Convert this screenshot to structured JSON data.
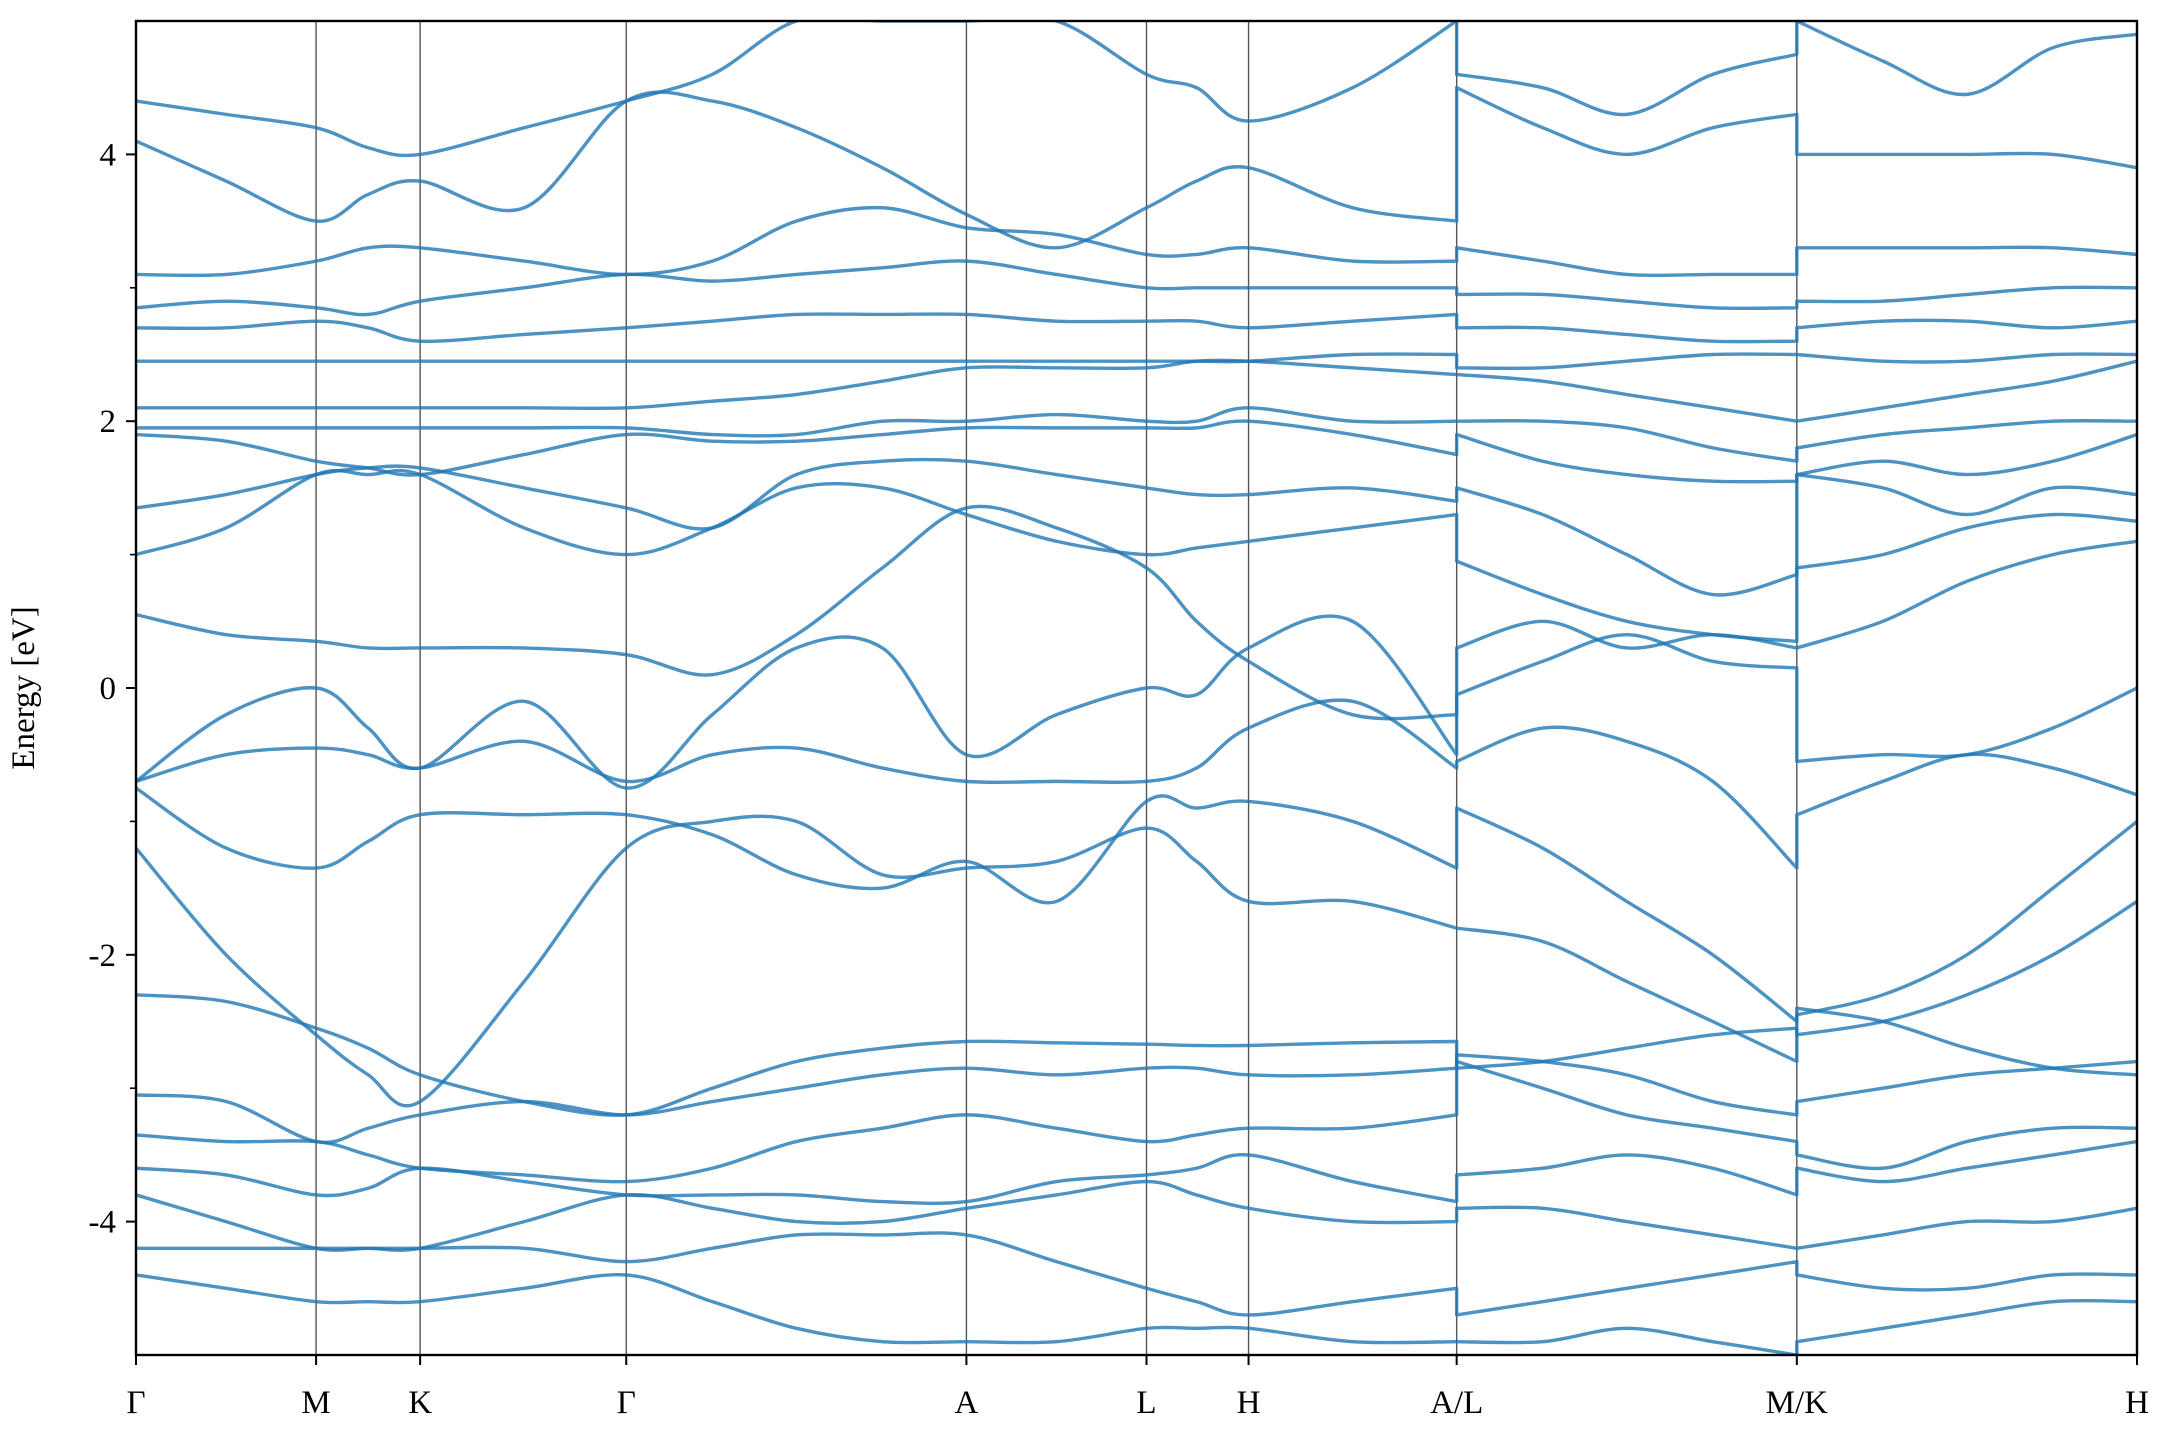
{
  "chart_data": {
    "type": "line",
    "ylabel": "Energy [eV]",
    "color": "#1f77b4",
    "xlim": [
      0,
      10
    ],
    "ylim": [
      -5,
      5
    ],
    "xticks": [
      {
        "value": 0,
        "label": "Γ"
      },
      {
        "value": 0.9,
        "label": "M"
      },
      {
        "value": 1.42,
        "label": "K"
      },
      {
        "value": 2.45,
        "label": "Γ"
      },
      {
        "value": 4.15,
        "label": "A"
      },
      {
        "value": 5.05,
        "label": "L"
      },
      {
        "value": 5.56,
        "label": "H"
      },
      {
        "value": 6.6,
        "label": "A/L"
      },
      {
        "value": 8.3,
        "label": "M/K"
      },
      {
        "value": 10,
        "label": "H"
      }
    ],
    "yticks": [
      -4,
      -2,
      0,
      2,
      4
    ],
    "yminorticks": [
      -3,
      -1,
      1,
      3
    ],
    "x": [
      0,
      0.45,
      0.9,
      1.16,
      1.42,
      1.94,
      2.45,
      2.88,
      3.3,
      3.73,
      4.15,
      4.6,
      5.05,
      5.3,
      5.56,
      6.08,
      6.6,
      6.6,
      7.03,
      7.45,
      7.88,
      8.3,
      8.3,
      8.73,
      9.15,
      9.58,
      10
    ],
    "series": [
      {
        "values": [
          -4.4,
          -4.5,
          -4.6,
          -4.6,
          -4.6,
          -4.5,
          -4.4,
          -4.6,
          -4.8,
          -4.9,
          -4.9,
          -4.9,
          -4.8,
          -4.8,
          -4.8,
          -4.9,
          -4.9,
          -4.9,
          -4.9,
          -4.8,
          -4.9,
          -5.0,
          -4.9,
          -4.8,
          -4.7,
          -4.6,
          -4.6
        ]
      },
      {
        "values": [
          -4.2,
          -4.2,
          -4.2,
          -4.2,
          -4.2,
          -4.2,
          -4.3,
          -4.2,
          -4.1,
          -4.1,
          -4.1,
          -4.3,
          -4.5,
          -4.6,
          -4.7,
          -4.6,
          -4.5,
          -4.7,
          -4.6,
          -4.5,
          -4.4,
          -4.3,
          -4.4,
          -4.5,
          -4.5,
          -4.4,
          -4.4
        ]
      },
      {
        "values": [
          -3.8,
          -4.0,
          -4.2,
          -4.2,
          -4.2,
          -4.0,
          -3.8,
          -3.9,
          -4.0,
          -4.0,
          -3.9,
          -3.8,
          -3.7,
          -3.8,
          -3.9,
          -4.0,
          -4.0,
          -3.9,
          -3.9,
          -4.0,
          -4.1,
          -4.2,
          -4.2,
          -4.1,
          -4.0,
          -4.0,
          -3.9
        ]
      },
      {
        "values": [
          -3.6,
          -3.65,
          -3.8,
          -3.75,
          -3.6,
          -3.7,
          -3.8,
          -3.8,
          -3.8,
          -3.85,
          -3.85,
          -3.7,
          -3.65,
          -3.6,
          -3.5,
          -3.7,
          -3.85,
          -3.65,
          -3.6,
          -3.5,
          -3.6,
          -3.8,
          -3.6,
          -3.7,
          -3.6,
          -3.5,
          -3.4
        ]
      },
      {
        "values": [
          -3.35,
          -3.4,
          -3.4,
          -3.5,
          -3.6,
          -3.65,
          -3.7,
          -3.6,
          -3.4,
          -3.3,
          -3.2,
          -3.3,
          -3.4,
          -3.35,
          -3.3,
          -3.3,
          -3.2,
          -2.8,
          -3.0,
          -3.2,
          -3.3,
          -3.4,
          -3.5,
          -3.6,
          -3.4,
          -3.3,
          -3.3
        ]
      },
      {
        "values": [
          -3.05,
          -3.1,
          -3.4,
          -3.3,
          -3.2,
          -3.1,
          -3.2,
          -3.1,
          -3.0,
          -2.9,
          -2.85,
          -2.9,
          -2.85,
          -2.85,
          -2.9,
          -2.9,
          -2.85,
          -2.75,
          -2.8,
          -2.9,
          -3.1,
          -3.2,
          -3.1,
          -3.0,
          -2.9,
          -2.85,
          -2.8
        ]
      },
      {
        "values": [
          -2.3,
          -2.35,
          -2.55,
          -2.7,
          -2.9,
          -3.1,
          -3.2,
          -3.0,
          -2.8,
          -2.7,
          -2.65,
          -2.66,
          -2.67,
          -2.68,
          -2.68,
          -2.66,
          -2.65,
          -2.85,
          -2.8,
          -2.7,
          -2.6,
          -2.55,
          -2.6,
          -2.5,
          -2.3,
          -2.0,
          -1.6
        ]
      },
      {
        "values": [
          -1.2,
          -2.0,
          -2.6,
          -2.9,
          -3.1,
          -2.2,
          -1.2,
          -1.0,
          -1.0,
          -1.4,
          -1.35,
          -1.3,
          -1.05,
          -1.3,
          -1.6,
          -1.6,
          -1.8,
          -1.8,
          -1.9,
          -2.2,
          -2.5,
          -2.8,
          -2.45,
          -2.3,
          -2.0,
          -1.5,
          -1.0
        ]
      },
      {
        "values": [
          -0.75,
          -1.2,
          -1.35,
          -1.15,
          -0.95,
          -0.95,
          -0.95,
          -1.1,
          -1.4,
          -1.5,
          -1.3,
          -1.6,
          -0.85,
          -0.9,
          -0.85,
          -1.0,
          -1.35,
          -0.9,
          -1.2,
          -1.6,
          -2.0,
          -2.5,
          -2.4,
          -2.5,
          -2.7,
          -2.85,
          -2.9
        ]
      },
      {
        "values": [
          -0.7,
          -0.5,
          -0.45,
          -0.5,
          -0.6,
          -0.4,
          -0.7,
          -0.5,
          -0.45,
          -0.6,
          -0.7,
          -0.7,
          -0.7,
          -0.6,
          -0.3,
          -0.1,
          -0.6,
          -0.55,
          -0.3,
          -0.4,
          -0.7,
          -1.35,
          -0.95,
          -0.7,
          -0.5,
          -0.6,
          -0.8
        ]
      },
      {
        "values": [
          -0.7,
          -0.2,
          0.0,
          -0.3,
          -0.6,
          -0.1,
          -0.75,
          -0.2,
          0.3,
          0.3,
          -0.5,
          -0.2,
          0.0,
          -0.05,
          0.3,
          0.5,
          -0.5,
          -0.05,
          0.2,
          0.4,
          0.2,
          0.15,
          -0.55,
          -0.5,
          -0.5,
          -0.3,
          0.0
        ]
      },
      {
        "values": [
          0.55,
          0.4,
          0.35,
          0.3,
          0.3,
          0.3,
          0.25,
          0.1,
          0.4,
          0.9,
          1.35,
          1.2,
          0.9,
          0.5,
          0.2,
          -0.2,
          -0.2,
          0.3,
          0.5,
          0.3,
          0.4,
          0.3,
          0.3,
          0.5,
          0.8,
          1.0,
          1.1
        ]
      },
      {
        "values": [
          1.0,
          1.2,
          1.6,
          1.6,
          1.6,
          1.2,
          1.0,
          1.2,
          1.5,
          1.5,
          1.3,
          1.1,
          1.0,
          1.05,
          1.1,
          1.2,
          1.3,
          0.95,
          0.7,
          0.5,
          0.4,
          0.35,
          0.9,
          1.0,
          1.2,
          1.3,
          1.25
        ]
      },
      {
        "values": [
          1.35,
          1.45,
          1.6,
          1.65,
          1.65,
          1.5,
          1.35,
          1.2,
          1.6,
          1.7,
          1.7,
          1.6,
          1.5,
          1.45,
          1.45,
          1.5,
          1.4,
          1.5,
          1.3,
          1.0,
          0.7,
          0.85,
          1.6,
          1.5,
          1.3,
          1.5,
          1.45
        ]
      },
      {
        "values": [
          1.9,
          1.85,
          1.7,
          1.65,
          1.6,
          1.75,
          1.9,
          1.85,
          1.85,
          1.9,
          1.95,
          1.95,
          1.95,
          1.95,
          2.0,
          1.9,
          1.75,
          1.9,
          1.7,
          1.6,
          1.55,
          1.55,
          1.6,
          1.7,
          1.6,
          1.7,
          1.9
        ]
      },
      {
        "values": [
          1.95,
          1.95,
          1.95,
          1.95,
          1.95,
          1.95,
          1.95,
          1.9,
          1.9,
          2.0,
          2.0,
          2.05,
          2.0,
          2.0,
          2.1,
          2.0,
          2.0,
          2.0,
          2.0,
          1.95,
          1.8,
          1.7,
          1.8,
          1.9,
          1.95,
          2.0,
          2.0
        ]
      },
      {
        "values": [
          2.1,
          2.1,
          2.1,
          2.1,
          2.1,
          2.1,
          2.1,
          2.15,
          2.2,
          2.3,
          2.4,
          2.4,
          2.4,
          2.45,
          2.45,
          2.4,
          2.35,
          2.35,
          2.3,
          2.2,
          2.1,
          2.0,
          2.0,
          2.1,
          2.2,
          2.3,
          2.45
        ]
      },
      {
        "values": [
          2.45,
          2.45,
          2.45,
          2.45,
          2.45,
          2.45,
          2.45,
          2.45,
          2.45,
          2.45,
          2.45,
          2.45,
          2.45,
          2.45,
          2.45,
          2.5,
          2.5,
          2.4,
          2.4,
          2.45,
          2.5,
          2.5,
          2.5,
          2.45,
          2.45,
          2.5,
          2.5
        ]
      },
      {
        "values": [
          2.7,
          2.7,
          2.75,
          2.7,
          2.6,
          2.65,
          2.7,
          2.75,
          2.8,
          2.8,
          2.8,
          2.75,
          2.75,
          2.75,
          2.7,
          2.75,
          2.8,
          2.7,
          2.7,
          2.65,
          2.6,
          2.6,
          2.7,
          2.75,
          2.75,
          2.7,
          2.75
        ]
      },
      {
        "values": [
          2.85,
          2.9,
          2.85,
          2.8,
          2.9,
          3.0,
          3.1,
          3.05,
          3.1,
          3.15,
          3.2,
          3.1,
          3.0,
          3.0,
          3.0,
          3.0,
          3.0,
          2.95,
          2.95,
          2.9,
          2.85,
          2.85,
          2.9,
          2.9,
          2.95,
          3.0,
          3.0
        ]
      },
      {
        "values": [
          3.1,
          3.1,
          3.2,
          3.3,
          3.3,
          3.2,
          3.1,
          3.2,
          3.5,
          3.6,
          3.45,
          3.4,
          3.25,
          3.25,
          3.3,
          3.2,
          3.2,
          3.3,
          3.2,
          3.1,
          3.1,
          3.1,
          3.3,
          3.3,
          3.3,
          3.3,
          3.25
        ]
      },
      {
        "values": [
          4.1,
          3.8,
          3.5,
          3.7,
          3.8,
          3.6,
          4.4,
          4.4,
          4.2,
          3.9,
          3.55,
          3.3,
          3.6,
          3.8,
          3.9,
          3.6,
          3.5,
          4.5,
          4.2,
          4.0,
          4.2,
          4.3,
          4.0,
          4.0,
          4.0,
          4.0,
          3.9
        ]
      },
      {
        "values": [
          4.4,
          4.3,
          4.2,
          4.05,
          4.0,
          4.2,
          4.4,
          4.6,
          5.0,
          5.0,
          5.0,
          5.0,
          4.6,
          4.5,
          4.25,
          4.5,
          5.0,
          4.6,
          4.5,
          4.3,
          4.6,
          4.75,
          5.0,
          4.7,
          4.45,
          4.8,
          4.9
        ]
      }
    ]
  }
}
